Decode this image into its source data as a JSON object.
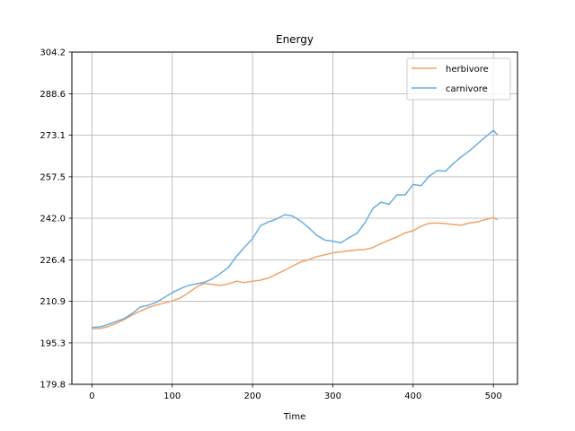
{
  "chart_data": {
    "type": "line",
    "title": "Energy",
    "xlabel": "Time",
    "ylabel": "",
    "xlim": [
      -25,
      530
    ],
    "ylim": [
      179.8,
      304.2
    ],
    "xticks": [
      0,
      100,
      200,
      300,
      400,
      500
    ],
    "yticks": [
      179.8,
      195.3,
      210.9,
      226.4,
      242.0,
      257.5,
      273.1,
      288.6,
      304.2
    ],
    "ytick_labels": [
      "179.8",
      "195.3",
      "210.9",
      "226.4",
      "242.0",
      "257.5",
      "273.1",
      "288.6",
      "304.2"
    ],
    "grid": true,
    "legend_position": "top-right",
    "series": [
      {
        "name": "herbivore",
        "color": "#f0a26a",
        "points": [
          [
            0,
            200.6
          ],
          [
            10,
            200.7
          ],
          [
            20,
            201.4
          ],
          [
            30,
            202.6
          ],
          [
            40,
            204.0
          ],
          [
            50,
            205.7
          ],
          [
            60,
            207.2
          ],
          [
            70,
            208.5
          ],
          [
            80,
            209.5
          ],
          [
            90,
            210.2
          ],
          [
            100,
            211.0
          ],
          [
            110,
            212.1
          ],
          [
            120,
            214.0
          ],
          [
            130,
            216.2
          ],
          [
            140,
            217.6
          ],
          [
            150,
            217.2
          ],
          [
            160,
            216.8
          ],
          [
            170,
            217.4
          ],
          [
            180,
            218.4
          ],
          [
            190,
            217.9
          ],
          [
            200,
            218.4
          ],
          [
            210,
            218.8
          ],
          [
            220,
            219.6
          ],
          [
            230,
            221.1
          ],
          [
            240,
            222.5
          ],
          [
            250,
            224.1
          ],
          [
            260,
            225.6
          ],
          [
            270,
            226.5
          ],
          [
            280,
            227.6
          ],
          [
            290,
            228.3
          ],
          [
            300,
            229.0
          ],
          [
            310,
            229.4
          ],
          [
            320,
            229.8
          ],
          [
            330,
            230.1
          ],
          [
            340,
            230.3
          ],
          [
            350,
            231.0
          ],
          [
            360,
            232.5
          ],
          [
            370,
            233.8
          ],
          [
            380,
            235.0
          ],
          [
            390,
            236.5
          ],
          [
            400,
            237.3
          ],
          [
            410,
            239.0
          ],
          [
            420,
            240.1
          ],
          [
            430,
            240.2
          ],
          [
            440,
            240.0
          ],
          [
            450,
            239.6
          ],
          [
            460,
            239.4
          ],
          [
            470,
            240.2
          ],
          [
            480,
            240.6
          ],
          [
            490,
            241.5
          ],
          [
            500,
            242.2
          ],
          [
            505,
            241.4
          ]
        ]
      },
      {
        "name": "carnivore",
        "color": "#6aaee0",
        "points": [
          [
            0,
            201.1
          ],
          [
            10,
            201.3
          ],
          [
            20,
            202.2
          ],
          [
            30,
            203.3
          ],
          [
            40,
            204.4
          ],
          [
            50,
            206.3
          ],
          [
            60,
            208.7
          ],
          [
            70,
            209.4
          ],
          [
            80,
            210.5
          ],
          [
            90,
            212.3
          ],
          [
            100,
            214.1
          ],
          [
            110,
            215.6
          ],
          [
            120,
            216.8
          ],
          [
            130,
            217.4
          ],
          [
            140,
            218.0
          ],
          [
            150,
            219.3
          ],
          [
            160,
            221.3
          ],
          [
            170,
            223.6
          ],
          [
            180,
            227.7
          ],
          [
            190,
            231.1
          ],
          [
            200,
            234.3
          ],
          [
            210,
            239.2
          ],
          [
            220,
            240.6
          ],
          [
            230,
            241.7
          ],
          [
            240,
            243.3
          ],
          [
            250,
            242.8
          ],
          [
            260,
            240.9
          ],
          [
            270,
            238.4
          ],
          [
            280,
            235.6
          ],
          [
            290,
            233.8
          ],
          [
            300,
            233.4
          ],
          [
            310,
            232.8
          ],
          [
            320,
            234.7
          ],
          [
            330,
            236.3
          ],
          [
            340,
            240.3
          ],
          [
            350,
            245.7
          ],
          [
            360,
            248.0
          ],
          [
            370,
            247.2
          ],
          [
            380,
            250.8
          ],
          [
            390,
            250.7
          ],
          [
            400,
            254.6
          ],
          [
            410,
            254.2
          ],
          [
            420,
            257.7
          ],
          [
            430,
            259.8
          ],
          [
            440,
            259.6
          ],
          [
            450,
            262.4
          ],
          [
            460,
            265.0
          ],
          [
            470,
            267.2
          ],
          [
            480,
            269.8
          ],
          [
            490,
            272.4
          ],
          [
            500,
            274.9
          ],
          [
            505,
            273.2
          ]
        ]
      }
    ]
  }
}
